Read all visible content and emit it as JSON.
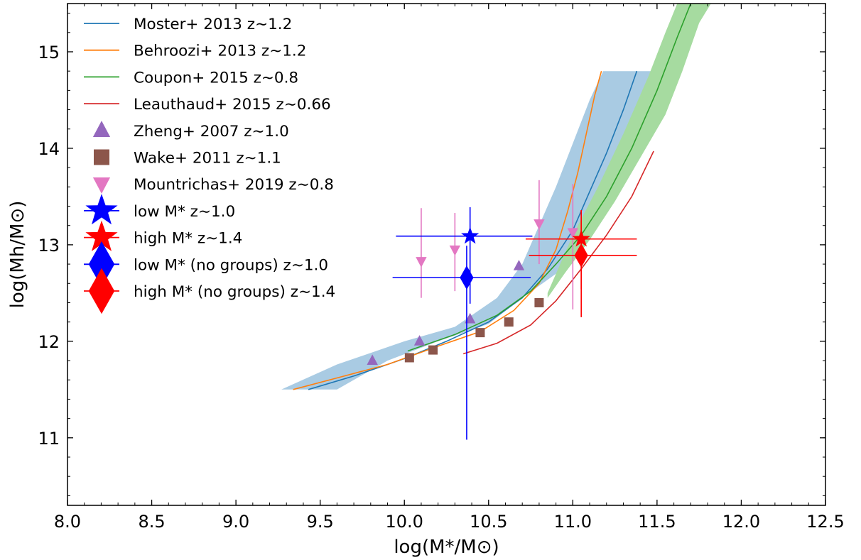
{
  "chart_data": {
    "type": "line",
    "xlabel": "log(M*/M⊙)",
    "ylabel": "log(Mh/M⊙)",
    "xlim": [
      8.0,
      12.5
    ],
    "ylim": [
      10.3,
      15.5
    ],
    "xticks": [
      "8.0",
      "8.5",
      "9.0",
      "9.5",
      "10.0",
      "10.5",
      "11.0",
      "11.5",
      "12.0",
      "12.5"
    ],
    "yticks": [
      "11",
      "12",
      "13",
      "14",
      "15"
    ],
    "grid": false,
    "legend_position": "top-left",
    "bands": [
      {
        "series": "Moster+ 2013",
        "color": "#a9cbe3",
        "upper": [
          [
            9.27,
            11.5
          ],
          [
            9.6,
            11.76
          ],
          [
            10.0,
            12.0
          ],
          [
            10.3,
            12.15
          ],
          [
            10.55,
            12.45
          ],
          [
            10.7,
            12.8
          ],
          [
            10.8,
            13.2
          ],
          [
            10.9,
            13.6
          ],
          [
            11.0,
            14.05
          ],
          [
            11.1,
            14.5
          ],
          [
            11.18,
            14.8
          ],
          [
            11.53,
            14.8
          ]
        ],
        "lower": [
          [
            11.4,
            14.55
          ],
          [
            11.3,
            14.1
          ],
          [
            11.2,
            13.65
          ],
          [
            11.1,
            13.25
          ],
          [
            11.0,
            12.95
          ],
          [
            10.9,
            12.7
          ],
          [
            10.7,
            12.45
          ],
          [
            10.5,
            12.18
          ],
          [
            10.2,
            12.0
          ],
          [
            9.9,
            11.8
          ],
          [
            9.6,
            11.5
          ]
        ]
      },
      {
        "series": "Coupon+ 2015",
        "color": "#a6dba0",
        "upper": [
          [
            10.85,
            12.5
          ],
          [
            11.0,
            13.1
          ],
          [
            11.15,
            13.6
          ],
          [
            11.3,
            14.15
          ],
          [
            11.45,
            14.75
          ],
          [
            11.55,
            15.2
          ],
          [
            11.62,
            15.5
          ],
          [
            11.82,
            15.5
          ]
        ],
        "lower": [
          [
            11.75,
            15.3
          ],
          [
            11.65,
            14.8
          ],
          [
            11.55,
            14.35
          ],
          [
            11.4,
            13.9
          ],
          [
            11.25,
            13.45
          ],
          [
            11.1,
            13.05
          ],
          [
            10.95,
            12.7
          ],
          [
            10.85,
            12.45
          ]
        ]
      }
    ],
    "series": [
      {
        "name": "Moster+ 2013 z∼1.2",
        "color": "#1f77b4",
        "points": [
          [
            9.43,
            11.5
          ],
          [
            9.7,
            11.64
          ],
          [
            10.0,
            11.82
          ],
          [
            10.25,
            12.0
          ],
          [
            10.5,
            12.2
          ],
          [
            10.7,
            12.45
          ],
          [
            10.85,
            12.75
          ],
          [
            11.0,
            13.15
          ],
          [
            11.1,
            13.55
          ],
          [
            11.2,
            13.95
          ],
          [
            11.3,
            14.4
          ],
          [
            11.38,
            14.8
          ]
        ]
      },
      {
        "name": "Behroozi+ 2013 z∼1.2",
        "color": "#ff7f0e",
        "points": [
          [
            9.34,
            11.5
          ],
          [
            9.6,
            11.62
          ],
          [
            9.9,
            11.76
          ],
          [
            10.2,
            11.95
          ],
          [
            10.45,
            12.1
          ],
          [
            10.65,
            12.32
          ],
          [
            10.8,
            12.6
          ],
          [
            10.9,
            12.95
          ],
          [
            10.97,
            13.35
          ],
          [
            11.03,
            13.75
          ],
          [
            11.08,
            14.15
          ],
          [
            11.13,
            14.55
          ],
          [
            11.17,
            14.8
          ]
        ]
      },
      {
        "name": "Coupon+ 2015 z∼0.8",
        "color": "#2ca02c",
        "points": [
          [
            10.02,
            11.9
          ],
          [
            10.3,
            12.07
          ],
          [
            10.55,
            12.27
          ],
          [
            10.75,
            12.52
          ],
          [
            10.9,
            12.8
          ],
          [
            11.05,
            13.1
          ],
          [
            11.2,
            13.5
          ],
          [
            11.35,
            14.0
          ],
          [
            11.5,
            14.6
          ],
          [
            11.62,
            15.15
          ],
          [
            11.7,
            15.5
          ]
        ]
      },
      {
        "name": "Leauthaud+ 2015 z∼0.66",
        "color": "#d62728",
        "points": [
          [
            10.35,
            11.87
          ],
          [
            10.55,
            11.98
          ],
          [
            10.75,
            12.17
          ],
          [
            10.9,
            12.42
          ],
          [
            11.05,
            12.75
          ],
          [
            11.2,
            13.1
          ],
          [
            11.35,
            13.5
          ],
          [
            11.48,
            13.97
          ]
        ]
      }
    ],
    "scatter": [
      {
        "name": "Zheng+ 2007 z∼1.0",
        "color": "#9467bd",
        "marker": "triangle-up",
        "points": [
          [
            9.81,
            11.8
          ],
          [
            10.09,
            12.0
          ],
          [
            10.39,
            12.23
          ],
          [
            10.68,
            12.78
          ]
        ]
      },
      {
        "name": "Wake+ 2011 z∼1.1",
        "color": "#8c564b",
        "marker": "square",
        "points": [
          [
            10.03,
            11.83
          ],
          [
            10.17,
            11.91
          ],
          [
            10.45,
            12.09
          ],
          [
            10.62,
            12.2
          ],
          [
            10.8,
            12.4
          ]
        ]
      },
      {
        "name": "Mountrichas+ 2019 z∼0.8",
        "color": "#e377c2",
        "marker": "triangle-down",
        "points": [
          [
            10.1,
            12.83,
            0.38,
            0.55
          ],
          [
            10.3,
            12.95,
            0.43,
            0.38
          ],
          [
            10.8,
            13.22,
            0.42,
            0.45
          ],
          [
            11.0,
            13.13,
            0.8,
            0.5
          ]
        ]
      }
    ],
    "errorbar_points": [
      {
        "name": "low M* z∼1.0",
        "color": "#0000ff",
        "marker": "star",
        "x": 10.39,
        "y": 13.09,
        "xerr": [
          0.44,
          0.37
        ],
        "yerr": [
          0.7,
          0.3
        ]
      },
      {
        "name": "high M* z∼1.4",
        "color": "#ff0000",
        "marker": "star",
        "x": 11.05,
        "y": 13.06,
        "xerr": [
          0.33,
          0.33
        ],
        "yerr": [
          0.52,
          0.3
        ]
      },
      {
        "name": "low M* (no groups) z∼1.0",
        "color": "#0000ff",
        "marker": "diamond",
        "x": 10.37,
        "y": 12.66,
        "xerr": [
          0.44,
          0.38
        ],
        "yerr": [
          1.68,
          0.33
        ]
      },
      {
        "name": "high M* (no groups) z∼1.4",
        "color": "#ff0000",
        "marker": "diamond",
        "x": 11.05,
        "y": 12.89,
        "xerr": [
          0.31,
          0.33
        ],
        "yerr": [
          0.64,
          0.47
        ]
      }
    ],
    "legend": [
      {
        "kind": "line",
        "color": "#1f77b4",
        "label": "Moster+ 2013 z∼1.2"
      },
      {
        "kind": "line",
        "color": "#ff7f0e",
        "label": "Behroozi+ 2013 z∼1.2"
      },
      {
        "kind": "line",
        "color": "#2ca02c",
        "label": "Coupon+ 2015 z∼0.8"
      },
      {
        "kind": "line",
        "color": "#d62728",
        "label": "Leauthaud+ 2015 z∼0.66"
      },
      {
        "kind": "triangle-up",
        "color": "#9467bd",
        "label": "Zheng+ 2007 z∼1.0"
      },
      {
        "kind": "square",
        "color": "#8c564b",
        "label": "Wake+ 2011 z∼1.1"
      },
      {
        "kind": "triangle-down",
        "color": "#e377c2",
        "label": "Mountrichas+ 2019 z∼0.8"
      },
      {
        "kind": "star",
        "color": "#0000ff",
        "label": "low M* z∼1.0"
      },
      {
        "kind": "star",
        "color": "#ff0000",
        "label": "high M* z∼1.4"
      },
      {
        "kind": "diamond",
        "color": "#0000ff",
        "label": "low M* (no groups) z∼1.0"
      },
      {
        "kind": "diamond",
        "color": "#ff0000",
        "label": "high M* (no groups) z∼1.4"
      }
    ]
  }
}
